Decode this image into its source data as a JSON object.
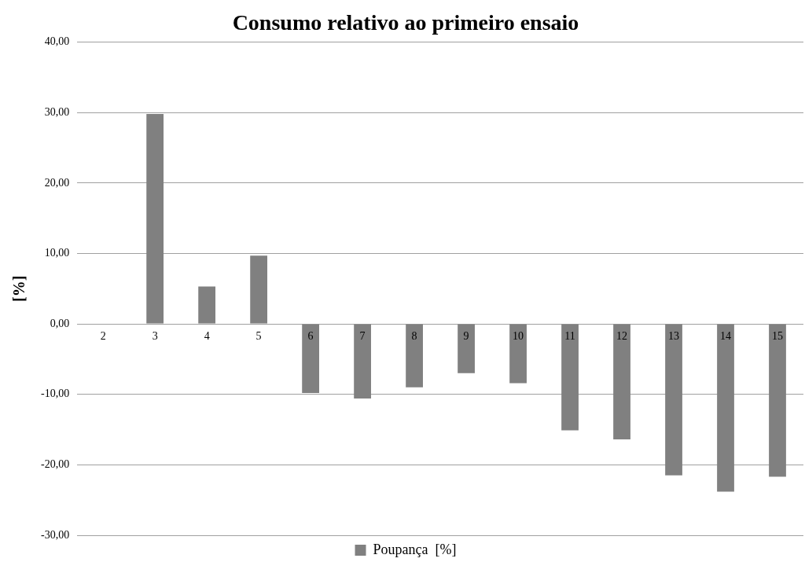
{
  "chart_data": {
    "type": "bar",
    "title": "Consumo relativo ao primeiro ensaio",
    "ylabel": "[%]",
    "categories": [
      "2",
      "3",
      "4",
      "5",
      "6",
      "7",
      "8",
      "9",
      "10",
      "11",
      "12",
      "13",
      "14",
      "15"
    ],
    "series": [
      {
        "name": "Poupança  [%]",
        "color": "#808080",
        "values": [
          0,
          29.8,
          5.3,
          9.7,
          -9.8,
          -10.6,
          -9.0,
          -7.0,
          -8.4,
          -15.1,
          -16.4,
          -21.5,
          -23.8,
          -21.7
        ]
      }
    ],
    "ylim": [
      -30,
      40
    ],
    "yticks": [
      {
        "value": -30,
        "label": "-30,00"
      },
      {
        "value": -20,
        "label": "-20,00"
      },
      {
        "value": -10,
        "label": "-10,00"
      },
      {
        "value": 0,
        "label": "0,00"
      },
      {
        "value": 10,
        "label": "10,00"
      },
      {
        "value": 20,
        "label": "20,00"
      },
      {
        "value": 30,
        "label": "30,00"
      },
      {
        "value": 40,
        "label": "40,00"
      }
    ],
    "grid": "y",
    "legend": "bottom"
  }
}
